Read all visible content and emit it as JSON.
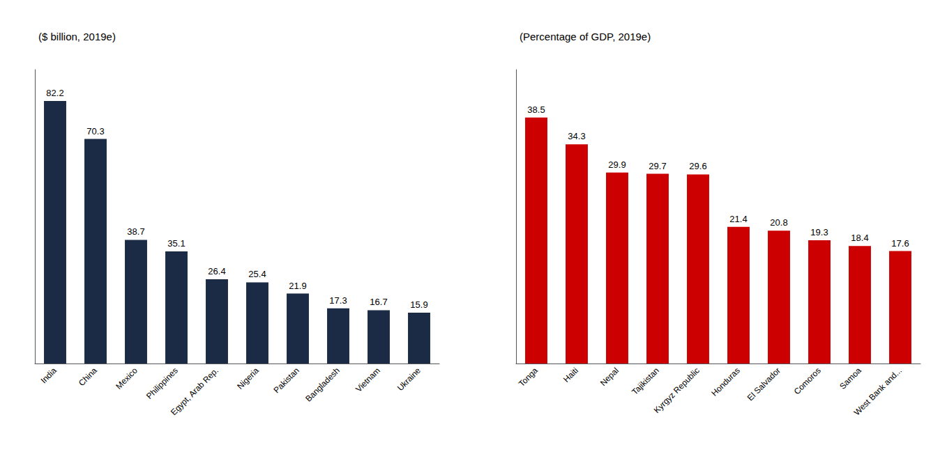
{
  "chart_data": [
    {
      "type": "bar",
      "title": "($ billion, 2019e)",
      "categories": [
        "India",
        "China",
        "Mexico",
        "Philippines",
        "Egypt, Arab Rep.",
        "Nigeria",
        "Pakistan",
        "Bangladesh",
        "Vietnam",
        "Ukraine"
      ],
      "values": [
        82.2,
        70.3,
        38.7,
        35.1,
        26.4,
        25.4,
        21.9,
        17.3,
        16.7,
        15.9
      ],
      "color": "#1b2a45",
      "ylim": [
        0,
        92
      ],
      "grid": false,
      "data_labels": true,
      "tick_labels": "x"
    },
    {
      "type": "bar",
      "title": "(Percentage of GDP, 2019e)",
      "categories": [
        "Tonga",
        "Haiti",
        "Nepal",
        "Tajikistan",
        "Kyrgyz Republic",
        "Honduras",
        "El Salvador",
        "Comoros",
        "Samoa",
        "West Bank and..."
      ],
      "values": [
        38.5,
        34.3,
        29.9,
        29.7,
        29.6,
        21.4,
        20.8,
        19.3,
        18.4,
        17.6
      ],
      "color": "#cc0000",
      "ylim": [
        0,
        46
      ],
      "grid": false,
      "data_labels": true,
      "tick_labels": "x"
    }
  ]
}
